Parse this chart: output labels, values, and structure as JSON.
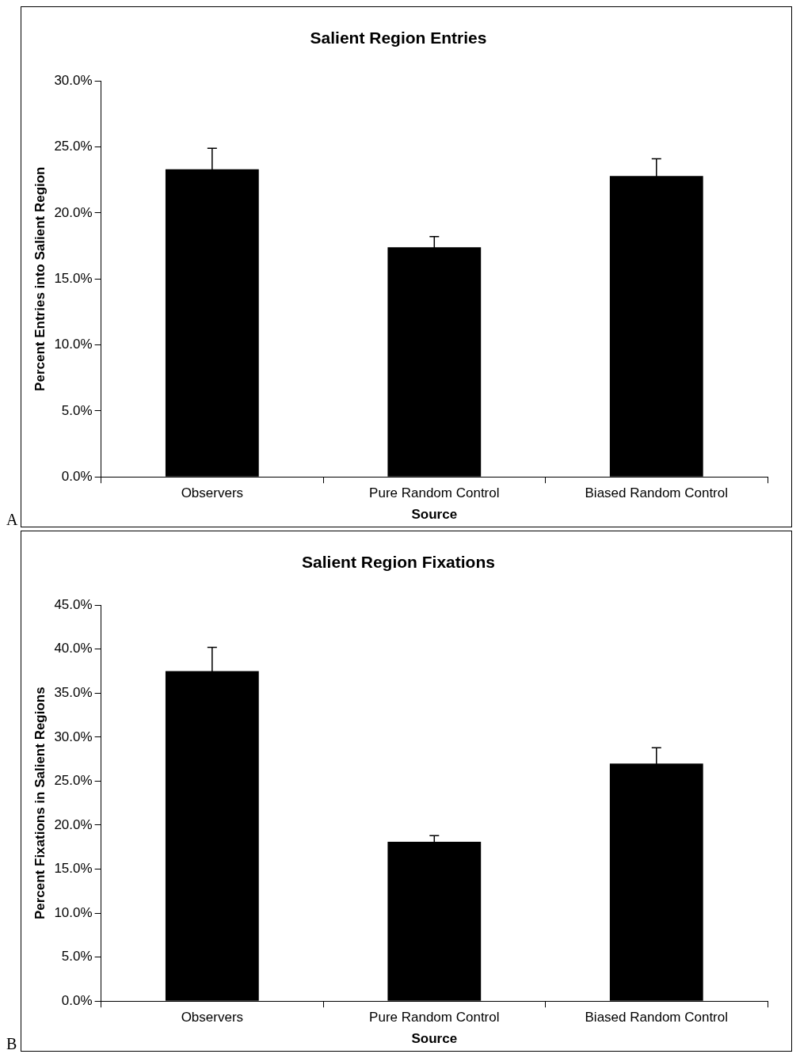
{
  "chart_data": [
    {
      "type": "bar",
      "title": "Salient Region Entries",
      "xlabel": "Source",
      "ylabel": "Percent Entries into Salient Region",
      "categories": [
        "Observers",
        "Pure Random Control",
        "Biased Random Control"
      ],
      "values": [
        23.3,
        17.4,
        22.8
      ],
      "errors": [
        1.6,
        0.8,
        1.3
      ],
      "color": "#000000",
      "ylim": [
        0,
        30
      ],
      "yticks": [
        {
          "value": 0,
          "label": "0.0%"
        },
        {
          "value": 5,
          "label": "5.0%"
        },
        {
          "value": 10,
          "label": "10.0%"
        },
        {
          "value": 15,
          "label": "15.0%"
        },
        {
          "value": 20,
          "label": "20.0%"
        },
        {
          "value": 25,
          "label": "25.0%"
        },
        {
          "value": 30,
          "label": "30.0%"
        }
      ],
      "grid": false,
      "legend": false,
      "annotations": [
        "A"
      ]
    },
    {
      "type": "bar",
      "title": "Salient Region Fixations",
      "xlabel": "Source",
      "ylabel": "Percent Fixations in Salient Regions",
      "categories": [
        "Observers",
        "Pure Random Control",
        "Biased Random Control"
      ],
      "values": [
        37.5,
        18.1,
        27.0
      ],
      "errors": [
        2.7,
        0.7,
        1.8
      ],
      "color": "#000000",
      "ylim": [
        0,
        45
      ],
      "yticks": [
        {
          "value": 0,
          "label": "0.0%"
        },
        {
          "value": 5,
          "label": "5.0%"
        },
        {
          "value": 10,
          "label": "10.0%"
        },
        {
          "value": 15,
          "label": "15.0%"
        },
        {
          "value": 20,
          "label": "20.0%"
        },
        {
          "value": 25,
          "label": "25.0%"
        },
        {
          "value": 30,
          "label": "30.0%"
        },
        {
          "value": 35,
          "label": "35.0%"
        },
        {
          "value": 40,
          "label": "40.0%"
        },
        {
          "value": 45,
          "label": "45.0%"
        }
      ],
      "grid": false,
      "legend": false,
      "annotations": [
        "B"
      ]
    }
  ]
}
